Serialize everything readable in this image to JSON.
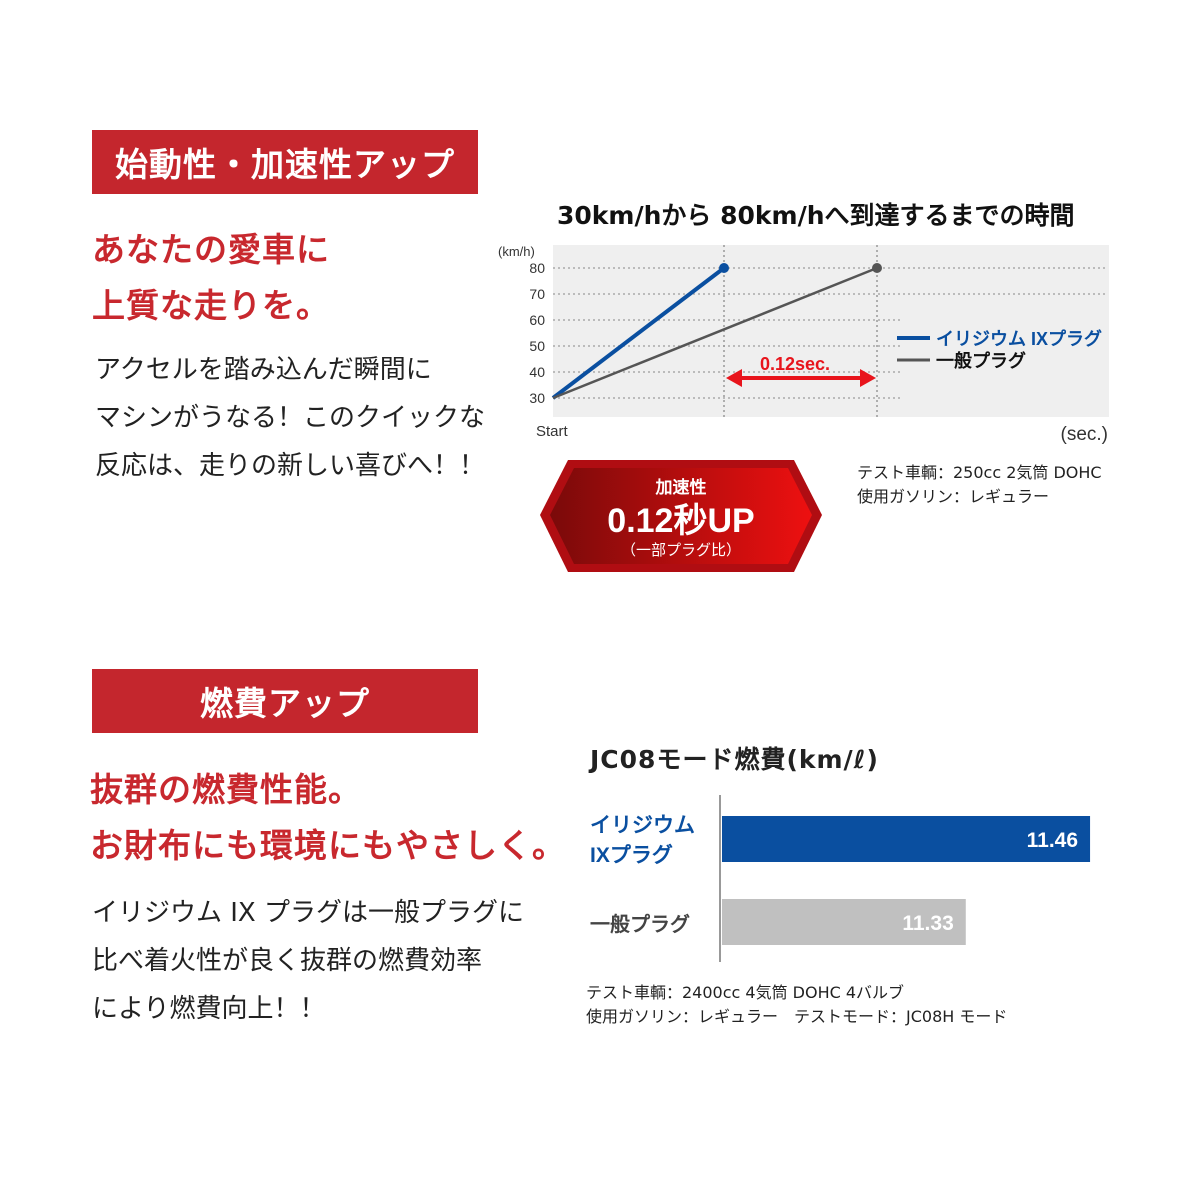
{
  "section1": {
    "header": "始動性・加速性アップ",
    "headline": [
      "あなたの愛車に",
      "上質な走りを。"
    ],
    "body": [
      "アクセルを踏み込んだ瞬間に",
      "マシンがうなる！このクイックな",
      "反応は、走りの新しい喜びへ！！"
    ],
    "badge": {
      "label": "加速性",
      "value": "0.12秒UP",
      "sub": "（一部プラグ比）"
    },
    "notes": [
      "テスト車輌：250cc 2気筒 DOHC",
      "使用ガソリン：レギュラー"
    ]
  },
  "section2": {
    "header": "燃費アップ",
    "headline": [
      "抜群の燃費性能。",
      "お財布にも環境にもやさしく。"
    ],
    "body": [
      "イリジウム IX プラグは一般プラグに",
      "比べ着火性が良く抜群の燃費効率",
      "により燃費向上！！"
    ],
    "notes": [
      "テスト車輌：2400cc 4気筒 DOHC 4バルブ",
      "使用ガソリン：レギュラー　テストモード：JC08H モード"
    ]
  },
  "colors": {
    "accent_red": "#c4262d",
    "iridium_blue": "#0a4fa0",
    "general_gray": "#555555",
    "bar_gray": "#c0c0c0",
    "arrow_red": "#e8141c"
  },
  "chart_data": [
    {
      "type": "line",
      "title": "30km/hから 80km/hへ到達するまでの時間",
      "ylabel": "(km/h)",
      "xlabel": "(sec.)",
      "x_start_label": "Start",
      "yticks": [
        30,
        40,
        50,
        60,
        70,
        80
      ],
      "ylim": [
        30,
        80
      ],
      "grid": true,
      "legend_position": "right",
      "series": [
        {
          "name": "イリジウム IXプラグ",
          "color": "#0a4fa0",
          "y": [
            30,
            80
          ]
        },
        {
          "name": "一般プラグ",
          "color": "#555555",
          "y": [
            30,
            80
          ]
        }
      ],
      "annotation": {
        "text": "0.12sec.",
        "difference_sec": 0.12
      }
    },
    {
      "type": "bar",
      "orientation": "horizontal",
      "title": "JC08モード燃費(km/ℓ)",
      "categories": [
        "イリジウム IXプラグ",
        "一般プラグ"
      ],
      "category_lines": [
        [
          "イリジウム",
          "IXプラグ"
        ],
        [
          "一般プラグ"
        ]
      ],
      "values": [
        11.46,
        11.33
      ],
      "value_labels": [
        "11.46",
        "11.33"
      ],
      "colors": [
        "#0a4fa0",
        "#c0c0c0"
      ]
    }
  ]
}
